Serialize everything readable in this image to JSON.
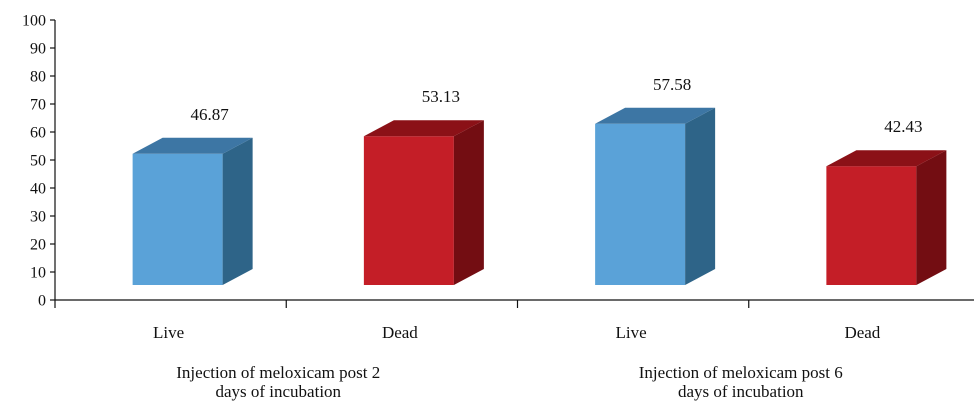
{
  "chart_data": {
    "type": "bar",
    "title": "",
    "xlabel": "",
    "ylabel": "",
    "ylim": [
      0,
      100
    ],
    "yticks": [
      0,
      10,
      20,
      30,
      40,
      50,
      60,
      70,
      80,
      90,
      100
    ],
    "grid": false,
    "legend": "none",
    "style": "3d-bars",
    "groups": [
      {
        "label_lines": [
          "Injection of meloxicam post 2",
          "days of incubation"
        ],
        "bars": [
          {
            "category": "Live",
            "value": 46.87,
            "value_label": "46.87",
            "color": "#5aa2d8",
            "side_color": "#2e6488",
            "top_color": "#3d76a4"
          },
          {
            "category": "Dead",
            "value": 53.13,
            "value_label": "53.13",
            "color": "#c41e27",
            "side_color": "#730d12",
            "top_color": "#8b1117"
          }
        ]
      },
      {
        "label_lines": [
          "Injection of meloxicam post 6",
          "days of incubation"
        ],
        "bars": [
          {
            "category": "Live",
            "value": 57.58,
            "value_label": "57.58",
            "color": "#5aa2d8",
            "side_color": "#2e6488",
            "top_color": "#3d76a4"
          },
          {
            "category": "Dead",
            "value": 42.43,
            "value_label": "42.43",
            "color": "#c41e27",
            "side_color": "#730d12",
            "top_color": "#8b1117"
          }
        ]
      }
    ]
  }
}
